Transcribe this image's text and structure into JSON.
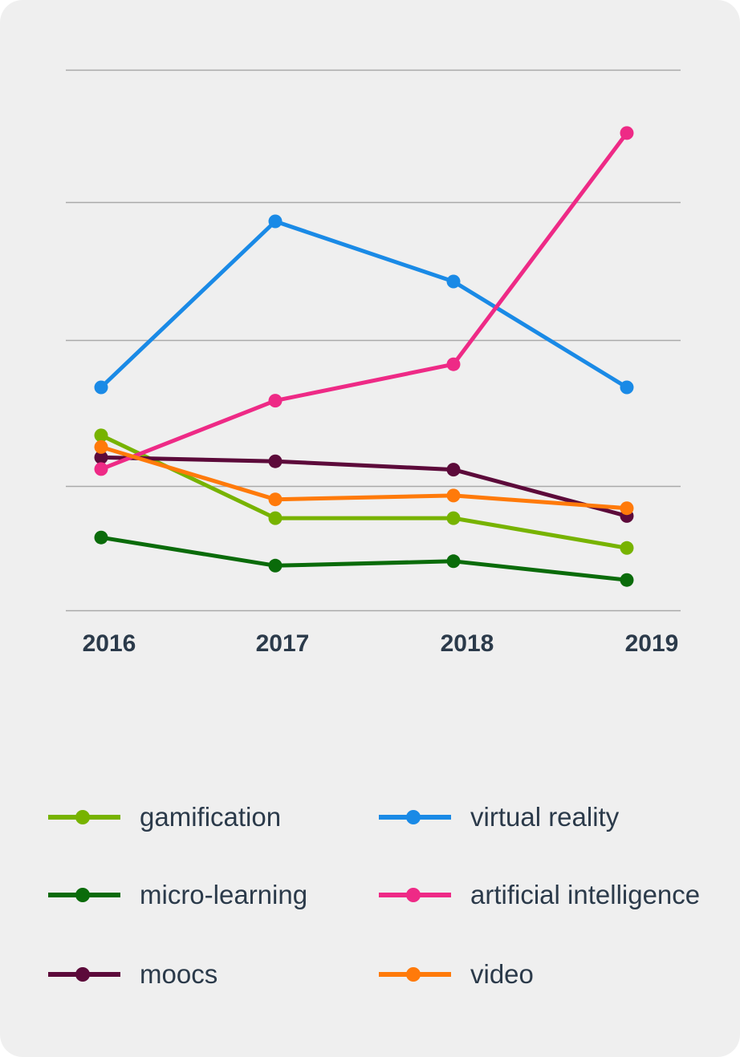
{
  "chart_data": {
    "type": "line",
    "categories": [
      "2016",
      "2017",
      "2018",
      "2019"
    ],
    "ylim": [
      0,
      100
    ],
    "yticks": [
      0,
      22.5,
      49,
      74,
      98
    ],
    "grid": true,
    "legend_position": "bottom",
    "series": [
      {
        "name": "gamification",
        "color": "#77b300",
        "values": [
          31.7,
          16.7,
          16.7,
          11.3
        ]
      },
      {
        "name": "micro-learning",
        "color": "#0a6b0a",
        "values": [
          13.2,
          8.1,
          8.9,
          5.5
        ]
      },
      {
        "name": "moocs",
        "color": "#5c0a3a",
        "values": [
          27.7,
          27.0,
          25.5,
          17.1
        ]
      },
      {
        "name": "virtual reality",
        "color": "#1a8ae6",
        "values": [
          40.4,
          70.5,
          59.6,
          40.4
        ]
      },
      {
        "name": "artificial intelligence",
        "color": "#ee2a86",
        "values": [
          25.6,
          38.0,
          44.6,
          86.5
        ]
      },
      {
        "name": "video",
        "color": "#ff7a0a",
        "values": [
          29.6,
          20.1,
          20.8,
          18.5
        ]
      }
    ]
  }
}
